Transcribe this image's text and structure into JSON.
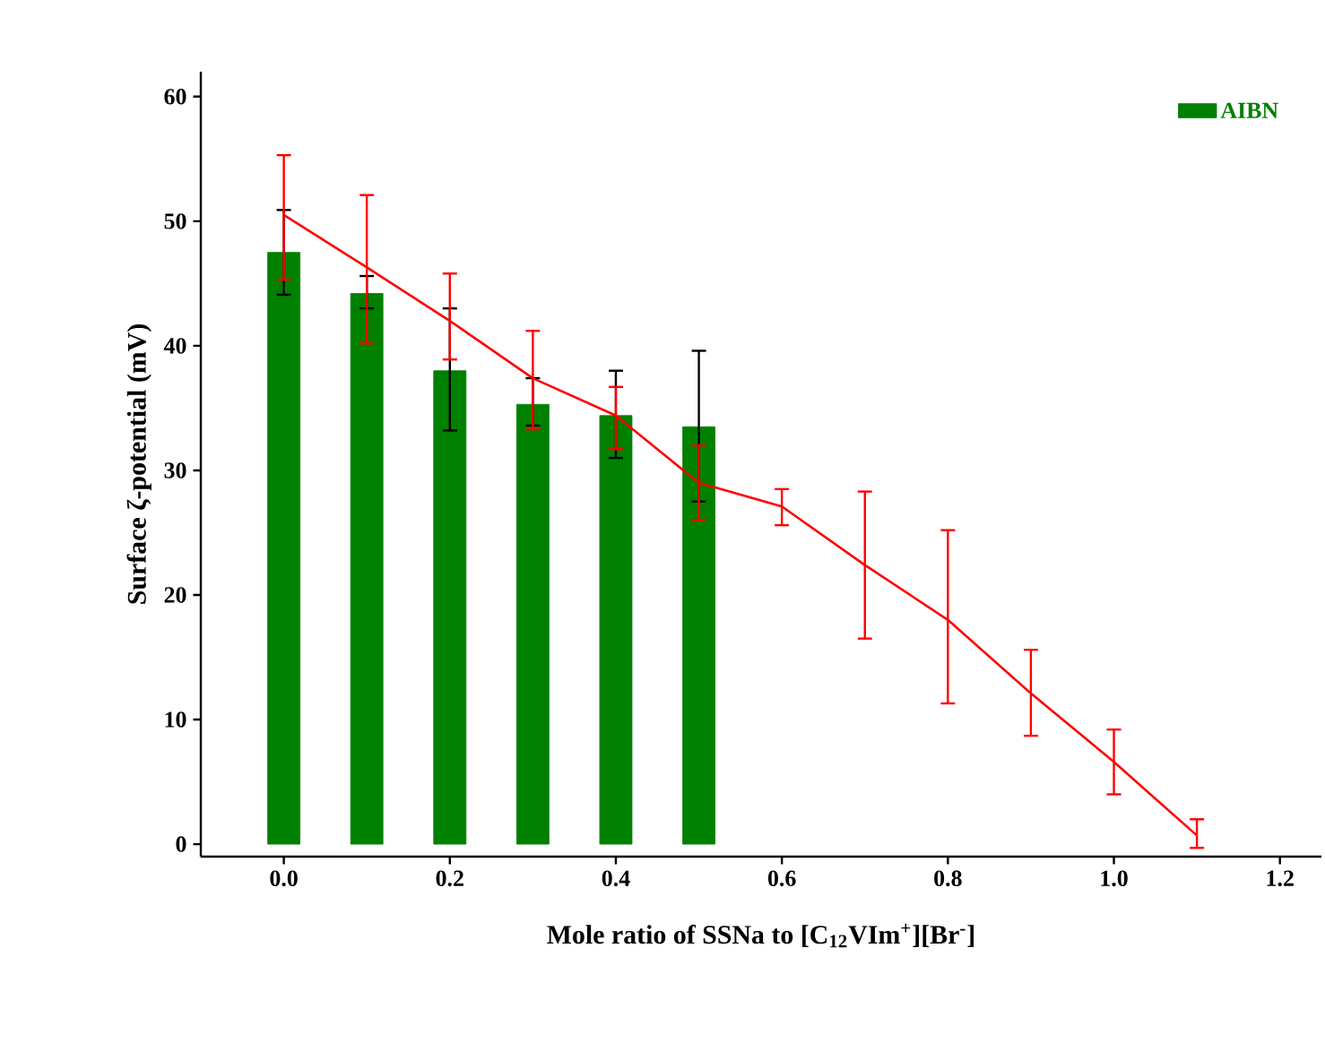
{
  "chart_data": {
    "type": "bar",
    "xlabel": "Mole ratio of SSNa to [C$_{12}$VIm$^{+}$][Br$^{-}$]",
    "ylabel": "Surface ζ-potential (mV)",
    "xlim": [
      -0.1,
      1.25
    ],
    "ylim": [
      -1,
      62
    ],
    "xticks": [
      {
        "value": 0,
        "label": "0.0"
      },
      {
        "value": 0.2,
        "label": "0.2"
      },
      {
        "value": 0.4,
        "label": "0.4"
      },
      {
        "value": 0.6,
        "label": "0.6"
      },
      {
        "value": 0.8,
        "label": "0.8"
      },
      {
        "value": 1.0,
        "label": "1.0"
      },
      {
        "value": 1.2,
        "label": "1.2"
      }
    ],
    "yticks": [
      0,
      10,
      20,
      30,
      40,
      50,
      60
    ],
    "legend": "top right",
    "grid": false,
    "series": [
      {
        "name": "AIBN",
        "color": "#008000",
        "x": [
          0,
          0.1,
          0.2,
          0.3,
          0.4,
          0.5
        ],
        "values": [
          47.5,
          44.2,
          38.0,
          35.3,
          34.4,
          33.5
        ],
        "errors": [
          [
            44.1,
            50.9
          ],
          [
            43.0,
            45.6
          ],
          [
            33.2,
            43.0
          ],
          [
            33.6,
            37.4
          ],
          [
            31.0,
            38.0
          ],
          [
            27.5,
            39.6
          ]
        ]
      },
      {
        "type": "line",
        "color": "#ff0000",
        "x": [
          0,
          0.1,
          0.2,
          0.3,
          0.4,
          0.5,
          0.6,
          0.7,
          0.8,
          0.9,
          1.0,
          1.1
        ],
        "values": [
          50.5,
          46.3,
          42.0,
          37.4,
          34.4,
          29.0,
          27.1,
          22.4,
          18.0,
          12.1,
          6.6,
          0.7
        ],
        "errors": [
          [
            45.3,
            55.3
          ],
          [
            40.2,
            52.1
          ],
          [
            38.9,
            45.8
          ],
          [
            33.3,
            41.2
          ],
          [
            31.7,
            36.7
          ],
          [
            26.0,
            32.0
          ],
          [
            25.6,
            28.5
          ],
          [
            16.5,
            28.3
          ],
          [
            11.3,
            25.2
          ],
          [
            8.7,
            15.6
          ],
          [
            4.0,
            9.2
          ],
          [
            -0.3,
            2.0
          ]
        ]
      }
    ]
  }
}
